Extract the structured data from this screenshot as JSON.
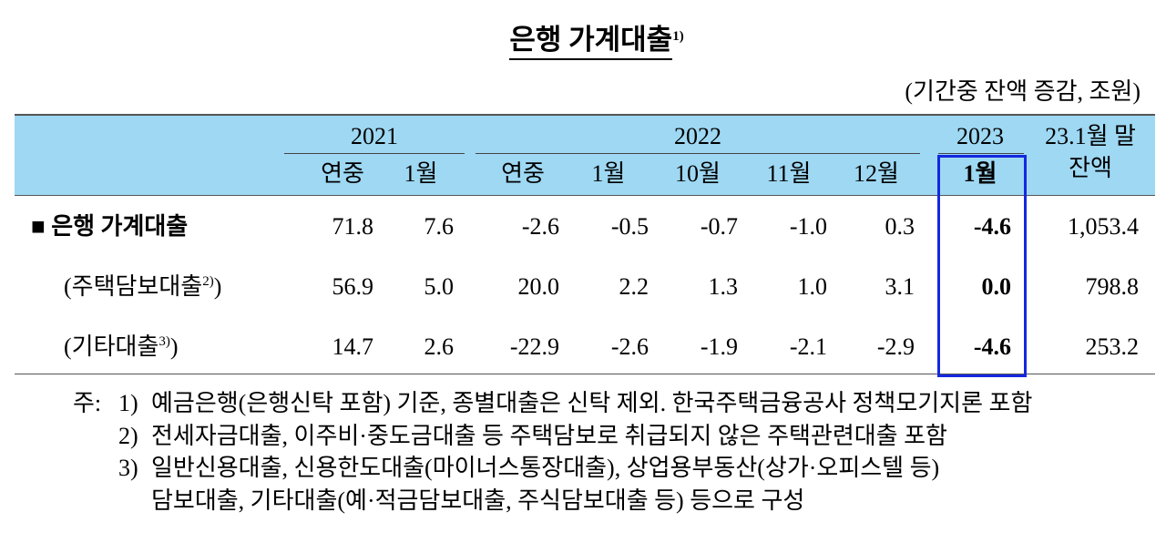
{
  "title": {
    "text": "은행 가계대출",
    "sup": "1)"
  },
  "unit": "(기간중 잔액 증감, 조원)",
  "table": {
    "year_groups": [
      "2021",
      "2022",
      "2023"
    ],
    "subheaders": [
      "연중",
      "1월",
      "연중",
      "1월",
      "10월",
      "11월",
      "12월",
      "1월"
    ],
    "balance_header": [
      "23.1월 말",
      "잔액"
    ],
    "rows": [
      {
        "label": "■ 은행 가계대출",
        "values": [
          "71.8",
          "7.6",
          "-2.6",
          "-0.5",
          "-0.7",
          "-1.0",
          "0.3",
          "-4.6",
          "1,053.4"
        ]
      },
      {
        "label": "(주택담보대출",
        "sup": "2)",
        "suffix": ")",
        "values": [
          "56.9",
          "5.0",
          "20.0",
          "2.2",
          "1.3",
          "1.0",
          "3.1",
          "0.0",
          "798.8"
        ]
      },
      {
        "label": "(기타대출",
        "sup": "3)",
        "suffix": ")",
        "values": [
          "14.7",
          "2.6",
          "-22.9",
          "-2.6",
          "-1.9",
          "-2.1",
          "-2.9",
          "-4.6",
          "253.2"
        ]
      }
    ]
  },
  "notes": {
    "prefix": "주:",
    "items": [
      {
        "marker": "1)",
        "lines": [
          "예금은행(은행신탁 포함) 기준, 종별대출은 신탁 제외. 한국주택금융공사 정책모기지론 포함"
        ]
      },
      {
        "marker": "2)",
        "lines": [
          "전세자금대출, 이주비·중도금대출 등 주택담보로 취급되지 않은 주택관련대출 포함"
        ]
      },
      {
        "marker": "3)",
        "lines": [
          "일반신용대출, 신용한도대출(마이너스통장대출), 상업용부동산(상가·오피스텔 등)",
          "담보대출, 기타대출(예·적금담보대출, 주식담보대출 등) 등으로 구성"
        ]
      }
    ]
  }
}
